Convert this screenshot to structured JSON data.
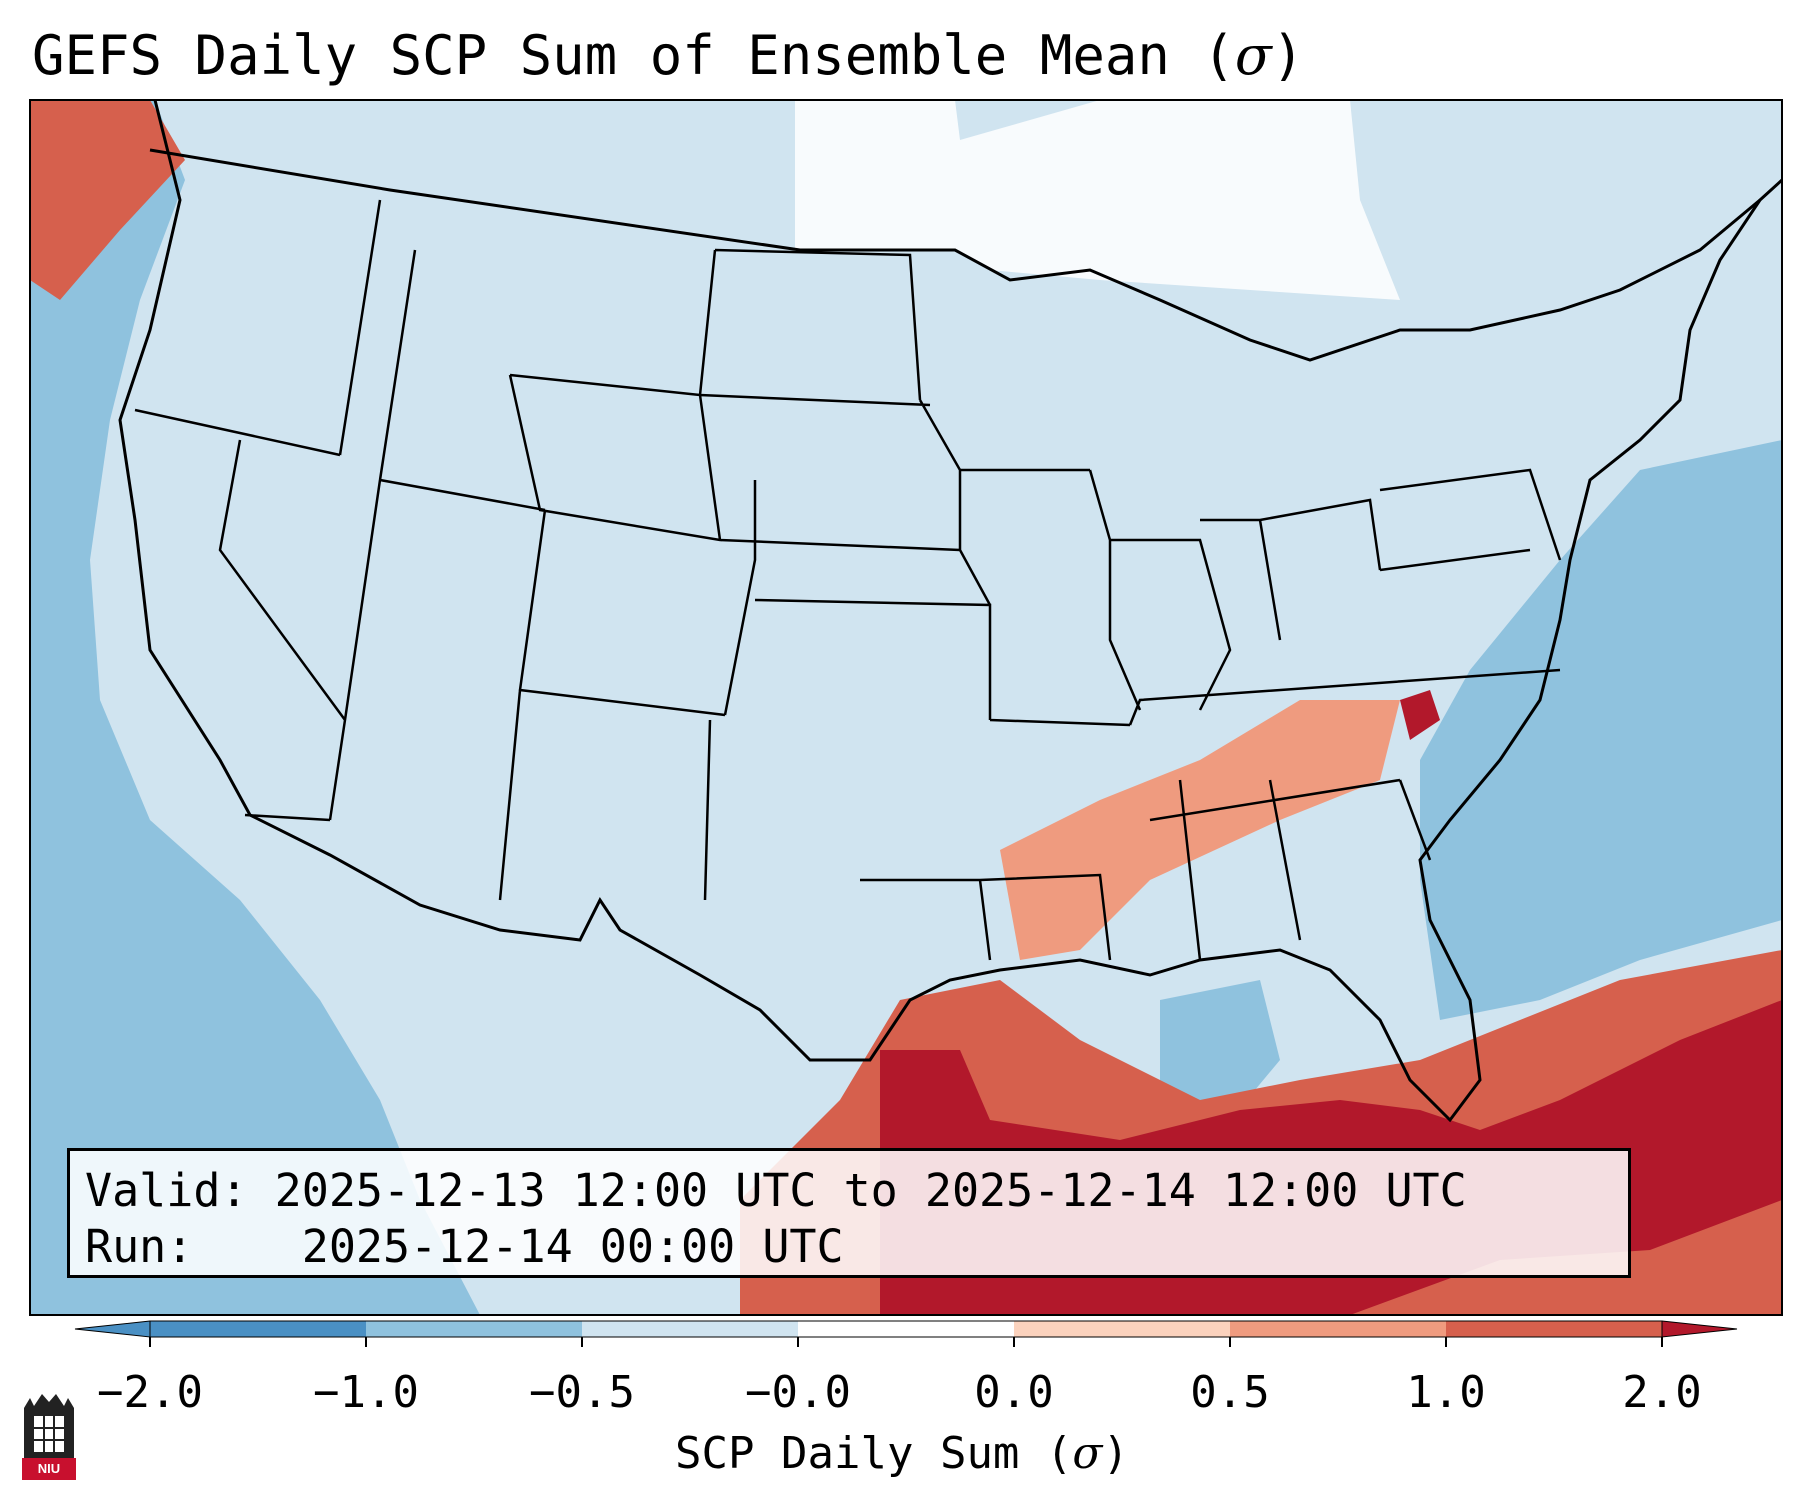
{
  "title": {
    "text": "GEFS Daily SCP Sum of Ensemble Mean (",
    "symbol": "σ",
    "close": ")"
  },
  "info": {
    "valid_label": "Valid:",
    "valid_value": "2025-12-13 12:00 UTC to 2025-12-14 12:00 UTC",
    "run_label": "Run:",
    "run_value": "2025-12-14 00:00 UTC"
  },
  "colorbar": {
    "label_text": "SCP Daily Sum (",
    "label_symbol": "σ",
    "label_close": ")",
    "ticks": [
      "−2.0",
      "−1.0",
      "−0.5",
      "−0.0",
      "0.0",
      "0.5",
      "1.0",
      "2.0"
    ],
    "colors": [
      "#4a90c4",
      "#8fc2de",
      "#d0e4f0",
      "#ffffff",
      "#fbd2bd",
      "#ef9b7f",
      "#d6604d",
      "#b2182b"
    ],
    "extend": "both"
  },
  "map_colors": {
    "ocean_low": "#8fc2de",
    "land_neutral": "#d0e4f0",
    "white": "#ffffff",
    "light_red": "#fbd2bd",
    "mid_red": "#ef9b7f",
    "red": "#d6604d",
    "dark_red": "#b2182b",
    "border": "#000000"
  },
  "logo": {
    "text": "NIU"
  }
}
